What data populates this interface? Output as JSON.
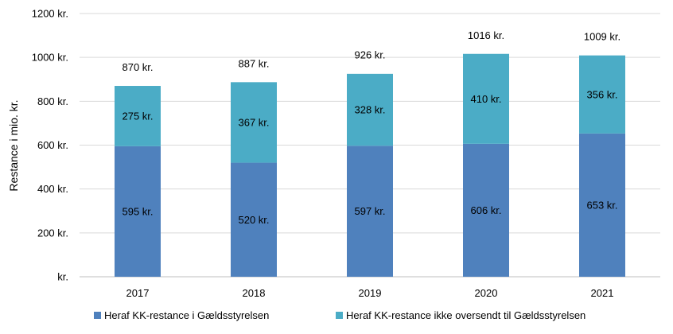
{
  "chart_data": {
    "type": "bar",
    "stacked": true,
    "categories": [
      "2017",
      "2018",
      "2019",
      "2020",
      "2021"
    ],
    "series": [
      {
        "name": "Heraf KK-restance i Gældsstyrelsen",
        "values": [
          595,
          520,
          597,
          606,
          653
        ],
        "labels": [
          "595 kr.",
          "520 kr.",
          "597 kr.",
          "606 kr.",
          "653 kr."
        ],
        "color": "#4f81bd"
      },
      {
        "name": "Heraf KK-restance ikke oversendt til Gældsstyrelsen",
        "values": [
          275,
          367,
          328,
          410,
          356
        ],
        "labels": [
          "275 kr.",
          "367 kr.",
          "328 kr.",
          "410 kr.",
          "356 kr."
        ],
        "color": "#4bacc6"
      }
    ],
    "totals": [
      870,
      887,
      926,
      1016,
      1009
    ],
    "total_labels": [
      "870 kr.",
      "887 kr.",
      "926 kr.",
      "1016 kr.",
      "1009 kr."
    ],
    "ylabel": "Restance i mio. kr.",
    "ylim": [
      0,
      1200
    ],
    "yticks": [
      0,
      200,
      400,
      600,
      800,
      1000,
      1200
    ],
    "ytick_labels": [
      "kr.",
      "200 kr.",
      "400 kr.",
      "600 kr.",
      "800 kr.",
      "1000 kr.",
      "1200 kr."
    ],
    "grid": true,
    "legend_position": "bottom"
  }
}
